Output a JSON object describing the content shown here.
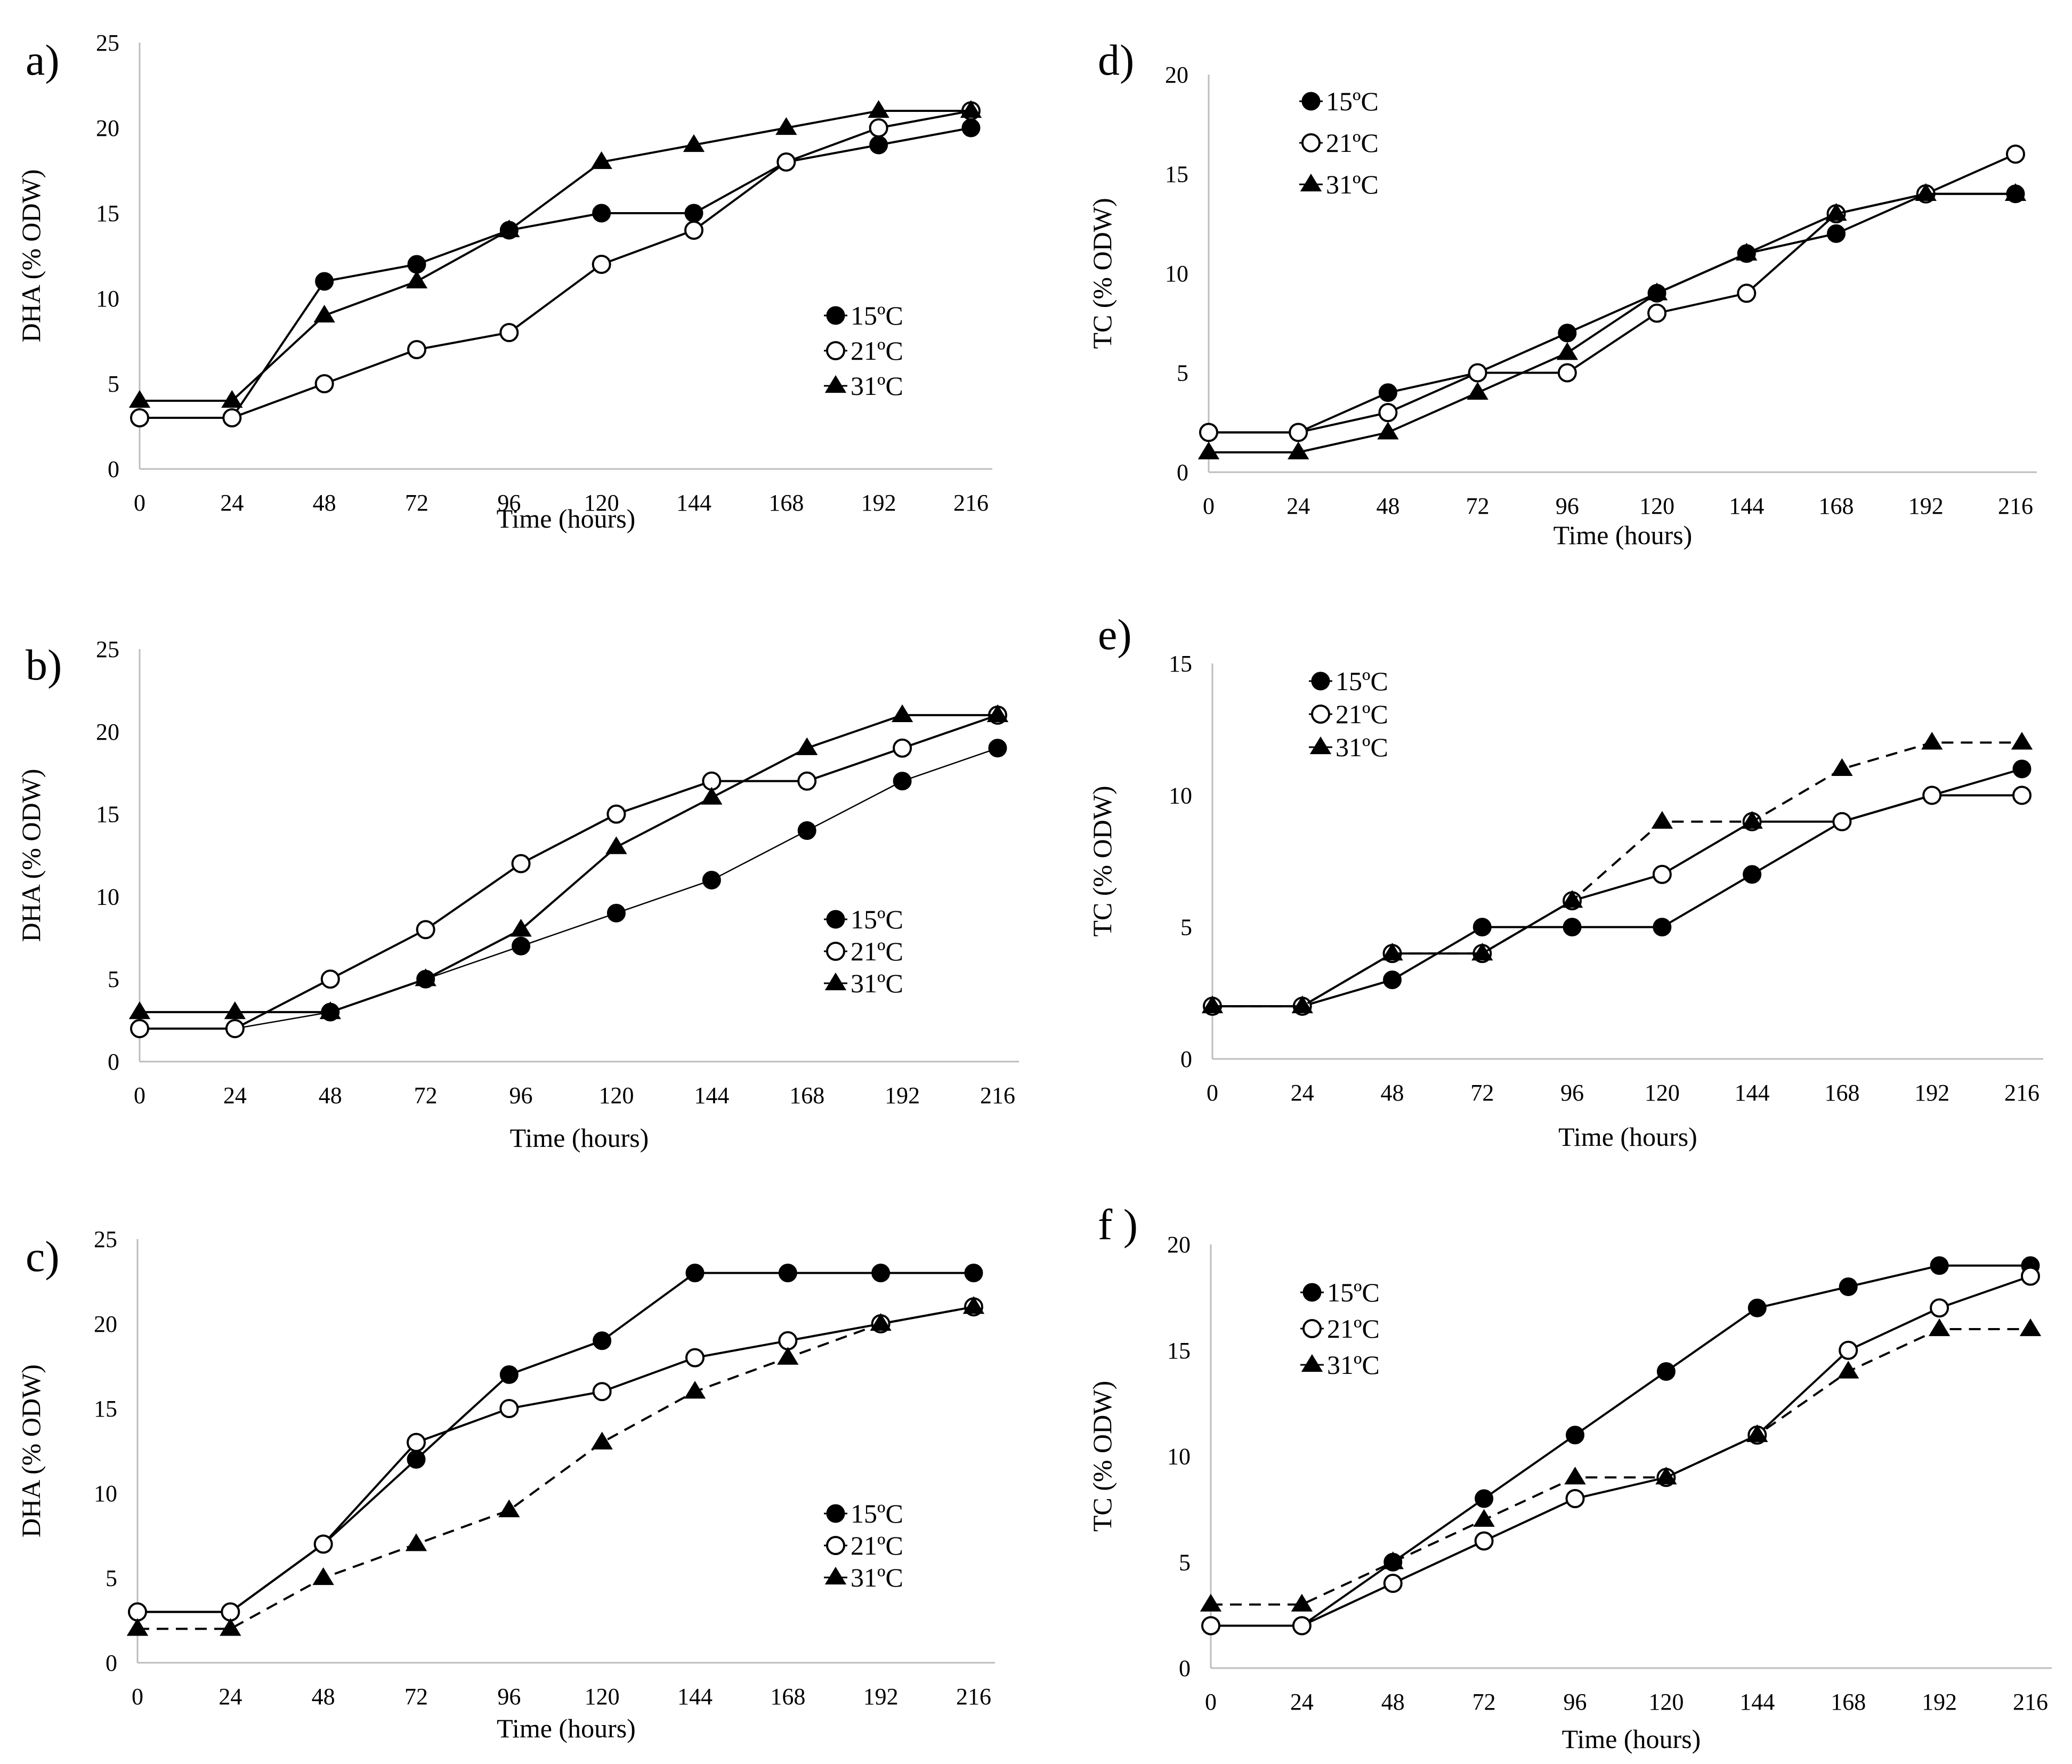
{
  "figure": {
    "x_ticks": [
      "0",
      "24",
      "48",
      "72",
      "96",
      "120",
      "144",
      "168",
      "192",
      "216"
    ],
    "x_values": [
      0,
      24,
      48,
      72,
      96,
      120,
      144,
      168,
      192,
      216
    ]
  },
  "chart_data": [
    {
      "id": "a",
      "letter": "a)",
      "type": "line",
      "xlabel": "Time (hours)",
      "ylabel": "DHA (% ODW)",
      "ylim": [
        0,
        25
      ],
      "yticks": [
        "0",
        "5",
        "10",
        "15",
        "20",
        "25"
      ],
      "legend_position": "center-right",
      "series": [
        {
          "name": "15ºC",
          "marker": "filled-circle",
          "dash": "solid",
          "values": [
            3,
            3,
            11,
            12,
            14,
            15,
            15,
            18,
            19,
            20
          ]
        },
        {
          "name": "21ºC",
          "marker": "open-circle",
          "dash": "solid",
          "values": [
            3,
            3,
            5,
            7,
            8,
            12,
            14,
            18,
            20,
            21
          ]
        },
        {
          "name": "31ºC",
          "marker": "triangle",
          "dash": "solid",
          "values": [
            4,
            4,
            9,
            11,
            14,
            18,
            19,
            20,
            21,
            21
          ]
        }
      ]
    },
    {
      "id": "b",
      "letter": "b)",
      "type": "line",
      "xlabel": "Time (hours)",
      "ylabel": "DHA (% ODW)",
      "ylim": [
        0,
        25
      ],
      "yticks": [
        "0",
        "5",
        "10",
        "15",
        "20",
        "25"
      ],
      "legend_position": "center-right",
      "series": [
        {
          "name": "15ºC",
          "marker": "filled-circle",
          "dash": "thin",
          "values": [
            2,
            2,
            3,
            5,
            7,
            9,
            11,
            14,
            17,
            19
          ]
        },
        {
          "name": "21ºC",
          "marker": "open-circle",
          "dash": "solid",
          "values": [
            2,
            2,
            5,
            8,
            12,
            15,
            17,
            17,
            19,
            21
          ]
        },
        {
          "name": "31ºC",
          "marker": "triangle",
          "dash": "solid",
          "values": [
            3,
            3,
            3,
            5,
            8,
            13,
            16,
            19,
            21,
            21
          ]
        }
      ]
    },
    {
      "id": "c",
      "letter": "c)",
      "type": "line",
      "xlabel": "Time (hours)",
      "ylabel": "DHA (% ODW)",
      "ylim": [
        0,
        25
      ],
      "yticks": [
        "0",
        "5",
        "10",
        "15",
        "20",
        "25"
      ],
      "legend_position": "center-right",
      "series": [
        {
          "name": "15ºC",
          "marker": "filled-circle",
          "dash": "solid",
          "values": [
            3,
            3,
            7,
            12,
            17,
            19,
            23,
            23,
            23,
            23
          ]
        },
        {
          "name": "21ºC",
          "marker": "open-circle",
          "dash": "solid",
          "values": [
            3,
            3,
            7,
            13,
            15,
            16,
            18,
            19,
            20,
            21
          ]
        },
        {
          "name": "31ºC",
          "marker": "triangle",
          "dash": "dashed",
          "values": [
            2,
            2,
            5,
            7,
            9,
            13,
            16,
            18,
            20,
            21
          ]
        }
      ]
    },
    {
      "id": "d",
      "letter": "d)",
      "type": "line",
      "xlabel": "Time (hours)",
      "ylabel": "TC (% ODW)",
      "ylim": [
        0,
        20
      ],
      "yticks": [
        "0",
        "5",
        "10",
        "15",
        "20"
      ],
      "legend_position": "top-left",
      "series": [
        {
          "name": "15ºC",
          "marker": "filled-circle",
          "dash": "solid",
          "values": [
            2,
            2,
            4,
            5,
            7,
            9,
            11,
            12,
            14,
            14
          ]
        },
        {
          "name": "21ºC",
          "marker": "open-circle",
          "dash": "solid",
          "values": [
            2,
            2,
            3,
            5,
            5,
            8,
            9,
            13,
            14,
            16
          ]
        },
        {
          "name": "31ºC",
          "marker": "triangle",
          "dash": "solid",
          "values": [
            1,
            1,
            2,
            4,
            6,
            9,
            11,
            13,
            14,
            14
          ]
        }
      ]
    },
    {
      "id": "e",
      "letter": "e)",
      "type": "line",
      "xlabel": "Time (hours)",
      "ylabel": "TC (% ODW)",
      "ylim": [
        0,
        15
      ],
      "yticks": [
        "0",
        "5",
        "10",
        "15"
      ],
      "legend_position": "top-left",
      "series": [
        {
          "name": "15ºC",
          "marker": "filled-circle",
          "dash": "solid",
          "values": [
            2,
            2,
            3,
            5,
            5,
            5,
            7,
            9,
            10,
            11
          ]
        },
        {
          "name": "21ºC",
          "marker": "open-circle",
          "dash": "solid",
          "values": [
            2,
            2,
            4,
            4,
            6,
            7,
            9,
            9,
            10,
            10
          ]
        },
        {
          "name": "31ºC",
          "marker": "triangle",
          "dash": "dashed",
          "values": [
            2,
            2,
            4,
            4,
            6,
            9,
            9,
            11,
            12,
            12
          ]
        }
      ]
    },
    {
      "id": "f",
      "letter": "f )",
      "type": "line",
      "xlabel": "Time (hours)",
      "ylabel": "TC (% ODW)",
      "ylim": [
        0,
        20
      ],
      "yticks": [
        "0",
        "5",
        "10",
        "15",
        "20"
      ],
      "legend_position": "top-left",
      "series": [
        {
          "name": "15ºC",
          "marker": "filled-circle",
          "dash": "solid",
          "values": [
            2,
            2,
            5,
            8,
            11,
            14,
            17,
            18,
            19,
            19
          ]
        },
        {
          "name": "21ºC",
          "marker": "open-circle",
          "dash": "solid",
          "values": [
            2,
            2,
            4,
            6,
            8,
            9,
            11,
            15,
            17,
            18.5
          ]
        },
        {
          "name": "31ºC",
          "marker": "triangle",
          "dash": "dashed",
          "values": [
            3,
            3,
            5,
            7,
            9,
            9,
            11,
            14,
            16,
            16
          ]
        }
      ]
    }
  ]
}
